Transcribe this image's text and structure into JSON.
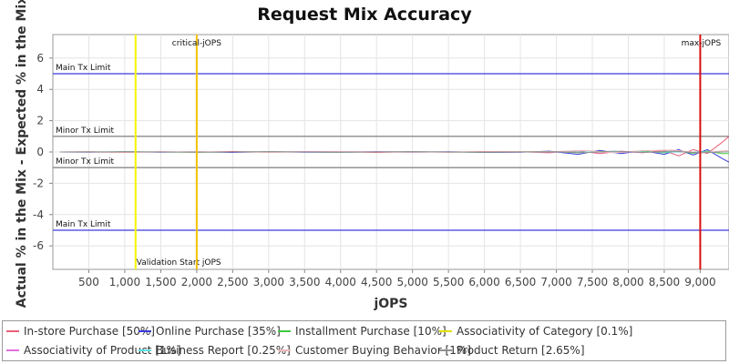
{
  "chart_data": {
    "type": "line",
    "title": "Request Mix Accuracy",
    "xlabel": "jOPS",
    "ylabel": "Actual % in the Mix - Expected % in the Mix",
    "xlim": [
      0,
      9400
    ],
    "ylim": [
      -7.5,
      7.5
    ],
    "xticks": [
      500,
      1000,
      1500,
      2000,
      2500,
      3000,
      3500,
      4000,
      4500,
      5000,
      5500,
      6000,
      6500,
      7000,
      7500,
      8000,
      8500,
      9000
    ],
    "xtick_labels": [
      "500",
      "1,000",
      "1,500",
      "2,000",
      "2,500",
      "3,000",
      "3,500",
      "4,000",
      "4,500",
      "5,000",
      "5,500",
      "6,000",
      "6,500",
      "7,000",
      "7,500",
      "8,000",
      "8,500",
      "9,000"
    ],
    "yticks": [
      6,
      4,
      2,
      0,
      -2,
      -4,
      -6
    ],
    "ytick_labels": [
      "6",
      "4",
      "2",
      "0",
      "-2",
      "-4",
      "-6"
    ],
    "grid": true,
    "legend_position": "bottom",
    "vertical_markers": [
      {
        "x": 1150,
        "label": "Validation Start jOPS",
        "color": "#f5f500"
      },
      {
        "x": 2000,
        "label": "critical-jOPS",
        "color": "#f5c000"
      },
      {
        "x": 9000,
        "label": "max-jOPS",
        "color": "#d81010"
      }
    ],
    "horizontal_limits": [
      {
        "y": 5,
        "label": "Main Tx Limit",
        "color": "#3a3adf"
      },
      {
        "y": -5,
        "label": "Main Tx Limit",
        "color": "#3a3adf"
      },
      {
        "y": 1,
        "label": "Minor Tx Limit",
        "color": "#8a8a8a"
      },
      {
        "y": -1,
        "label": "Minor Tx Limit",
        "color": "#8a8a8a"
      }
    ],
    "series": [
      {
        "name": "In-store Purchase [50%]",
        "color": "#e8607a",
        "x": [
          100,
          500,
          1000,
          1500,
          2000,
          2500,
          3000,
          3500,
          4000,
          4500,
          5000,
          5500,
          6000,
          6500,
          6900,
          7300,
          7600,
          7900,
          8200,
          8500,
          8700,
          8900,
          9100,
          9300,
          9400
        ],
        "y": [
          0,
          0.02,
          -0.03,
          0.02,
          -0.02,
          0.03,
          -0.02,
          0.02,
          0.01,
          -0.03,
          0.02,
          -0.02,
          0.03,
          0.02,
          -0.05,
          0.08,
          -0.1,
          0.05,
          -0.05,
          0.1,
          -0.25,
          0.15,
          -0.1,
          0.6,
          1.0
        ]
      },
      {
        "name": "Online Purchase [35%]",
        "color": "#3a3adf",
        "x": [
          100,
          500,
          1000,
          1500,
          2000,
          2500,
          3000,
          3500,
          4000,
          4500,
          5000,
          5500,
          6000,
          6500,
          6900,
          7300,
          7600,
          7900,
          8200,
          8500,
          8700,
          8900,
          9100,
          9300,
          9400
        ],
        "y": [
          0,
          -0.02,
          0.02,
          -0.02,
          0.02,
          -0.03,
          0.02,
          -0.01,
          -0.02,
          0.02,
          -0.02,
          0.02,
          -0.03,
          -0.02,
          0.05,
          -0.15,
          0.1,
          -0.1,
          0.08,
          -0.15,
          0.15,
          -0.2,
          0.15,
          -0.4,
          -0.65
        ]
      },
      {
        "name": "Installment Purchase [10%]",
        "color": "#40c840",
        "x": [
          100,
          1000,
          2000,
          3000,
          4000,
          5000,
          6000,
          6900,
          7300,
          7600,
          7900,
          8200,
          8500,
          8700,
          8900,
          9100,
          9300,
          9400
        ],
        "y": [
          0,
          0.01,
          -0.01,
          0.01,
          -0.01,
          0.01,
          -0.01,
          0.03,
          -0.05,
          0.04,
          -0.03,
          0.05,
          -0.05,
          0.05,
          -0.08,
          0.05,
          -0.1,
          -0.1
        ]
      },
      {
        "name": "Associativity of Category [0.1%]",
        "color": "#e0e000",
        "x": [
          100,
          2000,
          4000,
          6000,
          8000,
          9000,
          9400
        ],
        "y": [
          0,
          0,
          0,
          0,
          0,
          0,
          0
        ]
      },
      {
        "name": "Associativity of Product [1%]",
        "color": "#e070e0",
        "x": [
          100,
          2000,
          4000,
          6000,
          8000,
          9000,
          9400
        ],
        "y": [
          0,
          0,
          0.01,
          0,
          -0.01,
          0,
          0
        ]
      },
      {
        "name": "Business Report [0.25%]",
        "color": "#60e0e0",
        "x": [
          100,
          2000,
          4000,
          6000,
          8000,
          9000,
          9400
        ],
        "y": [
          0,
          0,
          0,
          0,
          0,
          0,
          0
        ]
      },
      {
        "name": "Customer Buying Behavior [1%]",
        "color": "#f0b8b8",
        "x": [
          100,
          1000,
          2000,
          3000,
          4000,
          5000,
          6000,
          7000,
          7400,
          7800,
          8200,
          8600,
          9000,
          9400
        ],
        "y": [
          0,
          -0.02,
          0.02,
          -0.02,
          0.02,
          -0.02,
          0.02,
          0.03,
          0.1,
          -0.05,
          0.08,
          0.12,
          -0.05,
          0.1
        ]
      },
      {
        "name": "Product Return [2.65%]",
        "color": "#909090",
        "x": [
          100,
          1000,
          2000,
          3000,
          4000,
          5000,
          6000,
          7000,
          7400,
          7800,
          8200,
          8600,
          9000,
          9400
        ],
        "y": [
          0,
          0.01,
          -0.01,
          0.01,
          -0.01,
          0.01,
          -0.01,
          0.02,
          -0.04,
          0.05,
          -0.03,
          0.05,
          -0.05,
          0.02
        ]
      }
    ]
  }
}
